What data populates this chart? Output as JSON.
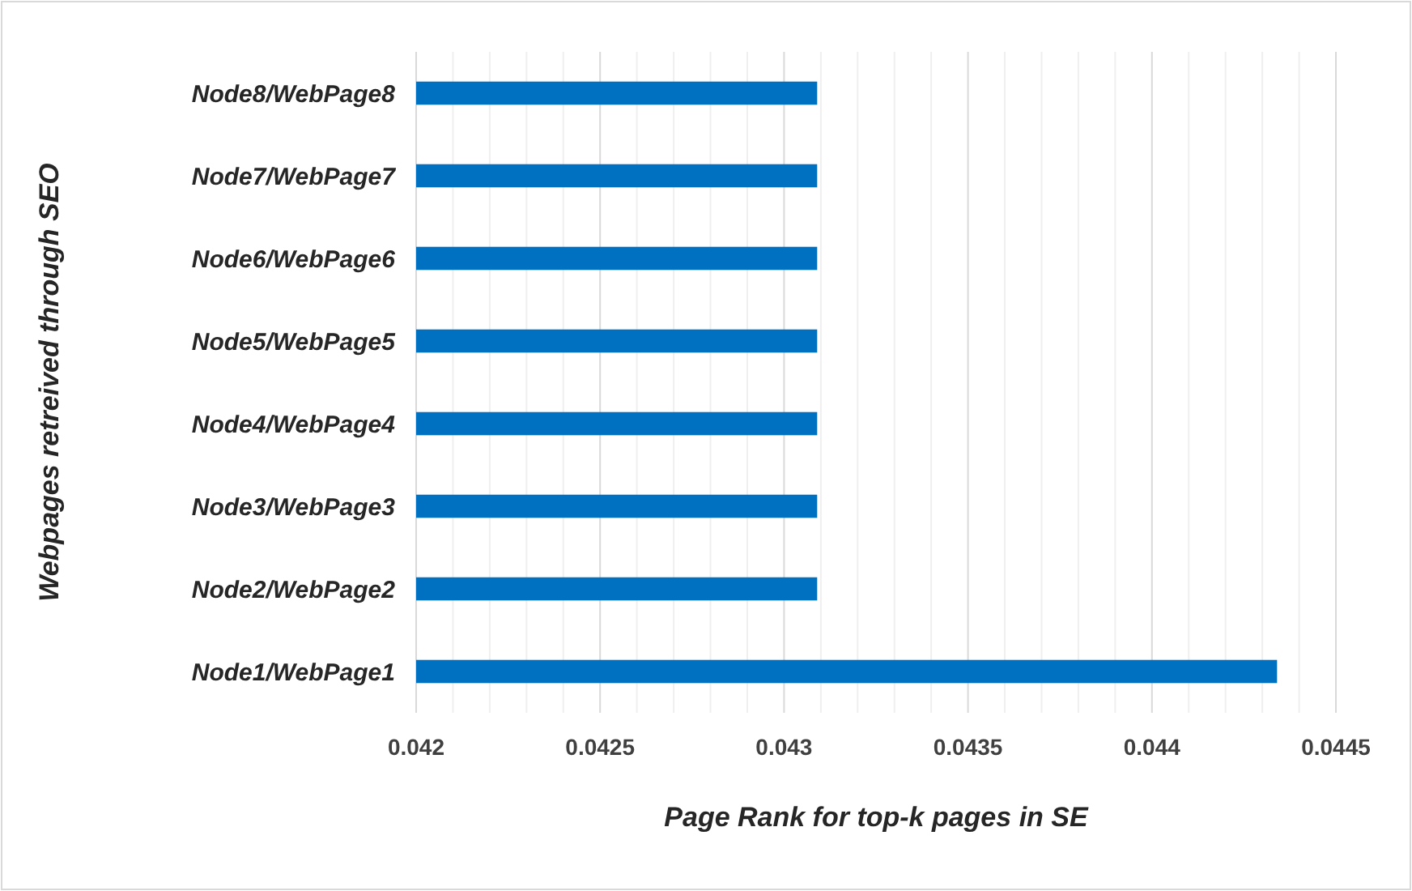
{
  "chart_data": {
    "type": "bar",
    "orientation": "horizontal",
    "xlabel": "Page Rank for top-k pages in SE",
    "ylabel": "Webpages retreived through SEO",
    "categories": [
      "Node8/WebPage8",
      "Node7/WebPage7",
      "Node6/WebPage6",
      "Node5/WebPage5",
      "Node4/WebPage4",
      "Node3/WebPage3",
      "Node2/WebPage2",
      "Node1/WebPage1"
    ],
    "values": [
      0.04309,
      0.04309,
      0.04309,
      0.04309,
      0.04309,
      0.04309,
      0.04309,
      0.04434
    ],
    "color": "#0070c0",
    "xlim": [
      0.042,
      0.0445
    ],
    "xticks": [
      0.042,
      {
        "value": 0.0421,
        "label": null
      },
      {
        "value": 0.0422,
        "label": null
      },
      {
        "value": 0.0423,
        "label": null
      },
      {
        "value": 0.0424,
        "label": null
      },
      0.0425,
      {
        "value": 0.0426,
        "label": null
      },
      {
        "value": 0.0427,
        "label": null
      },
      {
        "value": 0.0428,
        "label": null
      },
      {
        "value": 0.0429,
        "label": null
      },
      0.043,
      {
        "value": 0.0431,
        "label": null
      },
      {
        "value": 0.0432,
        "label": null
      },
      {
        "value": 0.0433,
        "label": null
      },
      {
        "value": 0.0434,
        "label": null
      },
      0.0435,
      {
        "value": 0.0436,
        "label": null
      },
      {
        "value": 0.0437,
        "label": null
      },
      {
        "value": 0.0438,
        "label": null
      },
      {
        "value": 0.0439,
        "label": null
      },
      0.044,
      {
        "value": 0.0441,
        "label": null
      },
      {
        "value": 0.0442,
        "label": null
      },
      {
        "value": 0.0443,
        "label": null
      },
      {
        "value": 0.0444,
        "label": null
      },
      0.0445
    ],
    "grid": "x"
  }
}
